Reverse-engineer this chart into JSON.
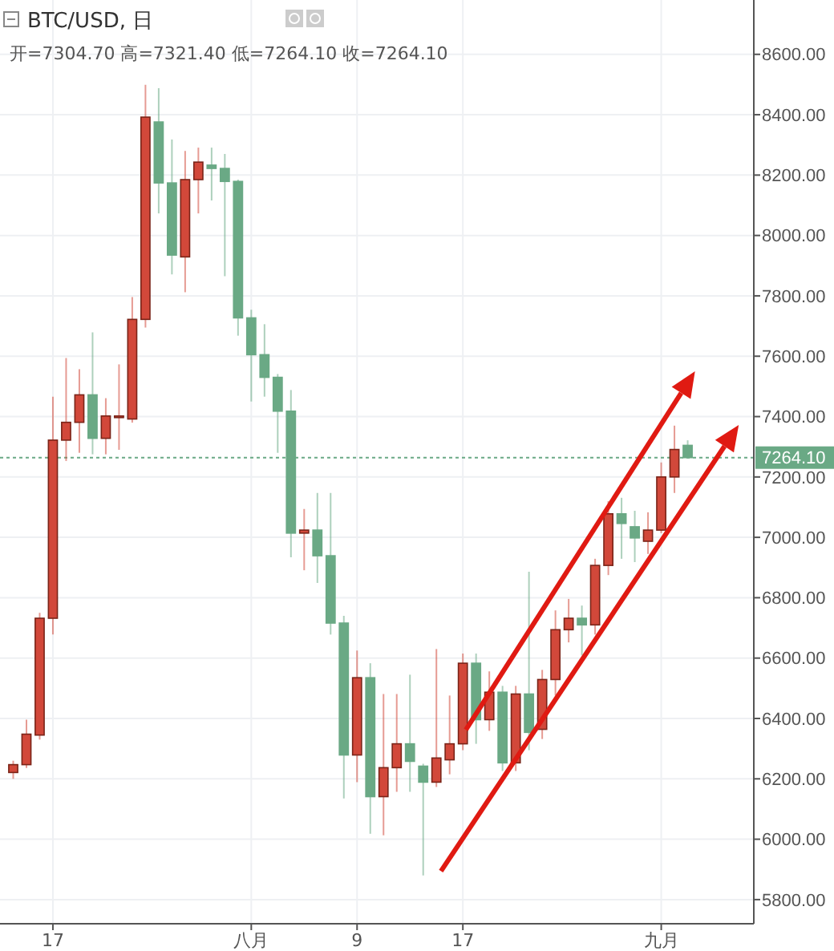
{
  "chart_data": {
    "type": "candlestick",
    "title": "BTC/USD, 日",
    "subtitle": "开=7304.70  高=7321.40  低=7264.10  收=7264.10",
    "x": [
      "--07-14",
      "--07-15",
      "--07-16",
      "--07-17",
      "--07-18",
      "--07-19",
      "--07-20",
      "--07-21",
      "--07-22",
      "--07-23",
      "--07-24",
      "--07-25",
      "--07-26",
      "--07-27",
      "--07-28",
      "--07-29",
      "--07-30",
      "--07-31",
      "--08-01",
      "--08-02",
      "--08-03",
      "--08-04",
      "--08-05",
      "--08-06",
      "--08-07",
      "--08-08",
      "--08-09",
      "--08-10",
      "--08-11",
      "--08-12",
      "--08-13",
      "--08-14",
      "--08-15",
      "--08-16",
      "--08-17",
      "--08-18",
      "--08-19",
      "--08-20",
      "--08-21",
      "--08-22",
      "--08-23",
      "--08-24",
      "--08-25",
      "--08-26",
      "--08-27",
      "--08-28",
      "--08-29",
      "--08-30",
      "--08-31",
      "--09-01",
      "--09-02",
      "--09-03"
    ],
    "ohlc": [
      [
        6221,
        6260,
        6200,
        6247
      ],
      [
        6247,
        6396,
        6236,
        6348
      ],
      [
        6345,
        6750,
        6330,
        6732
      ],
      [
        6732,
        7466,
        6678,
        7322
      ],
      [
        7322,
        7594,
        7253,
        7381
      ],
      [
        7381,
        7557,
        7280,
        7472
      ],
      [
        7472,
        7679,
        7275,
        7328
      ],
      [
        7328,
        7461,
        7275,
        7402
      ],
      [
        7398,
        7573,
        7290,
        7402
      ],
      [
        7392,
        7796,
        7380,
        7722
      ],
      [
        7722,
        8499,
        7695,
        8392
      ],
      [
        8376,
        8488,
        8073,
        8174
      ],
      [
        8174,
        8318,
        7871,
        7935
      ],
      [
        7929,
        8280,
        7812,
        8185
      ],
      [
        8185,
        8291,
        8073,
        8243
      ],
      [
        8233,
        8291,
        8116,
        8222
      ],
      [
        8222,
        8270,
        7865,
        8179
      ],
      [
        8179,
        8185,
        7668,
        7727
      ],
      [
        7727,
        7754,
        7450,
        7605
      ],
      [
        7605,
        7706,
        7466,
        7530
      ],
      [
        7530,
        7541,
        7280,
        7418
      ],
      [
        7418,
        7488,
        6934,
        7014
      ],
      [
        7014,
        7094,
        6891,
        7024
      ],
      [
        7024,
        7147,
        6849,
        6939
      ],
      [
        6939,
        7147,
        6678,
        6716
      ],
      [
        6716,
        6740,
        6135,
        6279
      ],
      [
        6279,
        6625,
        6189,
        6535
      ],
      [
        6535,
        6583,
        6018,
        6141
      ],
      [
        6141,
        6481,
        6013,
        6237
      ],
      [
        6237,
        6481,
        6157,
        6316
      ],
      [
        6316,
        6545,
        6157,
        6258
      ],
      [
        6242,
        6250,
        5880,
        6189
      ],
      [
        6189,
        6630,
        6173,
        6269
      ],
      [
        6263,
        6476,
        6215,
        6316
      ],
      [
        6316,
        6615,
        6295,
        6583
      ],
      [
        6583,
        6615,
        6316,
        6396
      ],
      [
        6396,
        6556,
        6359,
        6487
      ],
      [
        6487,
        6508,
        6226,
        6253
      ],
      [
        6253,
        6508,
        6226,
        6481
      ],
      [
        6481,
        6886,
        6295,
        6354
      ],
      [
        6364,
        6561,
        6332,
        6529
      ],
      [
        6529,
        6758,
        6476,
        6694
      ],
      [
        6694,
        6796,
        6652,
        6732
      ],
      [
        6732,
        6774,
        6609,
        6710
      ],
      [
        6710,
        6929,
        6678,
        6907
      ],
      [
        6907,
        7120,
        6875,
        7078
      ],
      [
        7078,
        7131,
        6929,
        7046
      ],
      [
        7035,
        7088,
        6918,
        6998
      ],
      [
        6987,
        7083,
        6945,
        7024
      ],
      [
        7024,
        7248,
        7014,
        7200
      ],
      [
        7200,
        7370,
        7147,
        7291
      ],
      [
        7304.7,
        7321.4,
        7264.1,
        7264.1
      ]
    ],
    "colors": [
      "#d2483a",
      "#d2483a",
      "#d2483a",
      "#d2483a",
      "#d2483a",
      "#d2483a",
      "#6aa985",
      "#d2483a",
      "#d2483a",
      "#d2483a",
      "#d2483a",
      "#6aa985",
      "#6aa985",
      "#d2483a",
      "#d2483a",
      "#6aa985",
      "#6aa985",
      "#6aa985",
      "#6aa985",
      "#6aa985",
      "#6aa985",
      "#6aa985",
      "#d2483a",
      "#6aa985",
      "#6aa985",
      "#6aa985",
      "#d2483a",
      "#6aa985",
      "#d2483a",
      "#d2483a",
      "#6aa985",
      "#6aa985",
      "#d2483a",
      "#d2483a",
      "#d2483a",
      "#6aa985",
      "#d2483a",
      "#6aa985",
      "#d2483a",
      "#6aa985",
      "#d2483a",
      "#d2483a",
      "#d2483a",
      "#6aa985",
      "#d2483a",
      "#d2483a",
      "#6aa985",
      "#6aa985",
      "#d2483a",
      "#d2483a",
      "#d2483a",
      "#6aa985"
    ],
    "xlim": [
      "--07-13",
      "--09-08"
    ],
    "xticks": [
      {
        "value": "--07-17",
        "label": "17"
      },
      {
        "value": "--08-01",
        "label": "八月"
      },
      {
        "value": "--08-09",
        "label": "9"
      },
      {
        "value": "--08-17",
        "label": "17"
      },
      {
        "value": "--09-01",
        "label": "九月"
      }
    ],
    "ylim": [
      5720,
      8780
    ],
    "yticks": [
      {
        "value": 5800,
        "label": "5800.00"
      },
      {
        "value": 6000,
        "label": "6000.00"
      },
      {
        "value": 6200,
        "label": "6200.00"
      },
      {
        "value": 6400,
        "label": "6400.00"
      },
      {
        "value": 6600,
        "label": "6600.00"
      },
      {
        "value": 6800,
        "label": "6800.00"
      },
      {
        "value": 7000,
        "label": "7000.00"
      },
      {
        "value": 7200,
        "label": "7200.00"
      },
      {
        "value": 7400,
        "label": "7400.00"
      },
      {
        "value": 7600,
        "label": "7600.00"
      },
      {
        "value": 7800,
        "label": "7800.00"
      },
      {
        "value": 8000,
        "label": "8000.00"
      },
      {
        "value": 8200,
        "label": "8200.00"
      },
      {
        "value": 8400,
        "label": "8400.00"
      },
      {
        "value": 8600,
        "label": "8600.00"
      }
    ],
    "ref_lines": [
      {
        "axis": "y",
        "value": 7264.1,
        "label": "7264.10",
        "color": "#6aa985",
        "line_style": "dotted"
      }
    ],
    "grid": true
  }
}
